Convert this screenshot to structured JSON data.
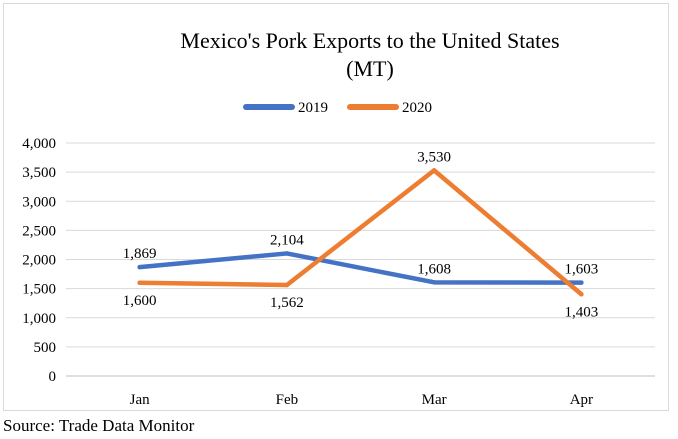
{
  "chart_data": {
    "type": "line",
    "title": "Mexico's Pork Exports to the United States",
    "subtitle": "(MT)",
    "categories": [
      "Jan",
      "Feb",
      "Mar",
      "Apr"
    ],
    "series": [
      {
        "name": "2019",
        "values": [
          1869,
          2104,
          1608,
          1603
        ],
        "color": "#4472c4"
      },
      {
        "name": "2020",
        "values": [
          1600,
          1562,
          3530,
          1403
        ],
        "color": "#ed7d31"
      }
    ],
    "data_labels": {
      "2019": [
        "1,869",
        "2,104",
        "1,608",
        "1,603"
      ],
      "2020": [
        "1,600",
        "1,562",
        "3,530",
        "1,403"
      ]
    },
    "yticks": [
      "0",
      "500",
      "1,000",
      "1,500",
      "2,000",
      "2,500",
      "3,000",
      "3,500",
      "4,000"
    ],
    "ylim": [
      0,
      4000
    ],
    "grid": true,
    "legend_position": "top"
  },
  "source": "Source: Trade Data Monitor"
}
